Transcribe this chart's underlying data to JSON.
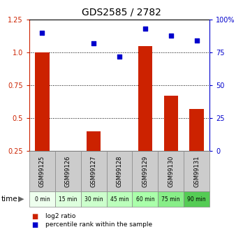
{
  "title": "GDS2585 / 2782",
  "samples": [
    "GSM99125",
    "GSM99126",
    "GSM99127",
    "GSM99128",
    "GSM99129",
    "GSM99130",
    "GSM99131"
  ],
  "time_labels": [
    "0 min",
    "15 min",
    "30 min",
    "45 min",
    "60 min",
    "75 min",
    "90 min"
  ],
  "log2_ratio": [
    1.0,
    0.0,
    0.4,
    0.02,
    1.05,
    0.67,
    0.57
  ],
  "percentile_rank": [
    90,
    null,
    82,
    72,
    93,
    88,
    84
  ],
  "bar_color": "#cc2200",
  "dot_color": "#0000cc",
  "left_ylim": [
    0.25,
    1.25
  ],
  "right_ylim": [
    0,
    100
  ],
  "left_yticks": [
    0.25,
    0.5,
    0.75,
    1.0,
    1.25
  ],
  "right_yticks": [
    0,
    25,
    50,
    75,
    100
  ],
  "right_yticklabels": [
    "0",
    "25",
    "50",
    "75",
    "100%"
  ],
  "dotted_lines": [
    1.0,
    0.75,
    0.5
  ],
  "sample_bg_color": "#cccccc",
  "time_bg_colors": [
    "#eeffee",
    "#ddffd d",
    "#ccffcc",
    "#bbffbb",
    "#aaffaa",
    "#88ee88",
    "#55cc55"
  ],
  "legend_items": [
    {
      "label": "log2 ratio",
      "color": "#cc2200"
    },
    {
      "label": "percentile rank within the sample",
      "color": "#0000cc"
    }
  ],
  "title_fontsize": 10,
  "tick_fontsize": 7,
  "bar_width": 0.55,
  "dot_size": 25
}
